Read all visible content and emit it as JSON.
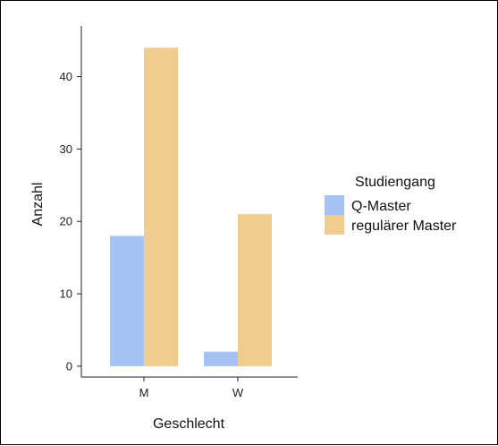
{
  "chart_data": {
    "type": "bar",
    "categories": [
      "M",
      "W"
    ],
    "series": [
      {
        "name": "Q-Master",
        "values": [
          18,
          2
        ],
        "color": "#a4c2f4"
      },
      {
        "name": "regulärer Master",
        "values": [
          44,
          21
        ],
        "color": "#f0cd8c"
      }
    ],
    "xlabel": "Geschlecht",
    "ylabel": "Anzahl",
    "ylim": [
      -1.5,
      47
    ],
    "yticks": [
      0,
      10,
      20,
      30,
      40
    ],
    "legend": {
      "title": "Studiengang",
      "position": "right"
    },
    "grid": false
  }
}
